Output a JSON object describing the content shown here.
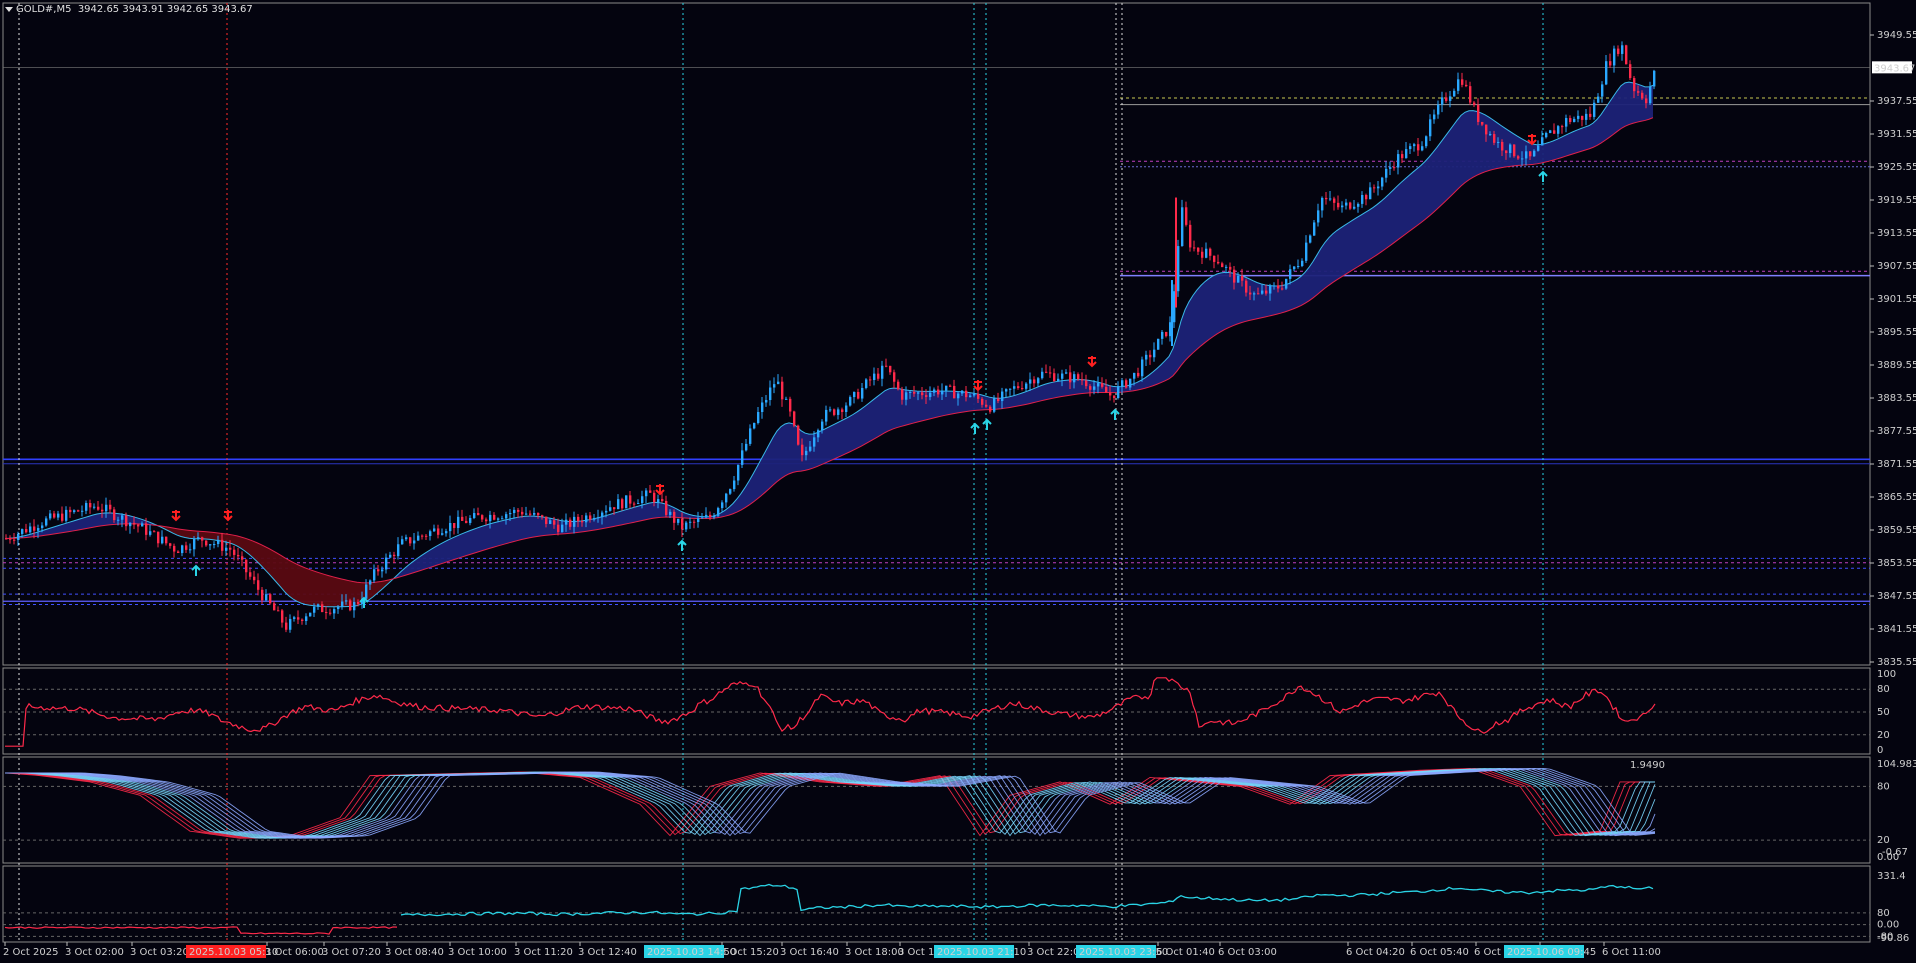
{
  "header": {
    "symbol": "GOLD#,M5",
    "ohlc": "3942.65 3943.91 3942.65 3943.67"
  },
  "price_axis": {
    "labels": [
      "3949.55",
      "3937.55",
      "3931.55",
      "3925.55",
      "3919.55",
      "3913.55",
      "3907.55",
      "3901.55",
      "3895.55",
      "3889.55",
      "3883.55",
      "3877.55",
      "3871.55",
      "3865.55",
      "3859.55",
      "3853.55",
      "3847.55",
      "3841.55",
      "3835.55"
    ],
    "current_price": "3943.67"
  },
  "sub1_axis": {
    "labels": [
      "100",
      "80",
      "50",
      "20",
      "0"
    ]
  },
  "sub2_axis": {
    "labels": [
      "104.9837",
      "80",
      "20",
      "0.00"
    ],
    "value": "1.9490",
    "extra": "-0.67"
  },
  "sub3_axis": {
    "labels": [
      "331.4",
      "80",
      "0.00",
      "-80",
      "-90.86"
    ]
  },
  "time_axis": {
    "labels": [
      "2 Oct 2025",
      "3 Oct 02:00",
      "3 Oct 03:20",
      "3 Oct 06:00",
      "3 Oct 07:20",
      "3 Oct 08:40",
      "3 Oct 10:00",
      "3 Oct 11:20",
      "3 Oct 12:40",
      "3 Oct 15:20",
      "3 Oct 16:40",
      "3 Oct 18:00",
      "3 Oct 19",
      "3 Oct 22:00",
      "6 Oct 01:40",
      "6 Oct 03:00",
      "6 Oct 04:20",
      "6 Oct 05:40",
      "6 Oct 07:00",
      "6 Oct",
      "6 Oct 11:00"
    ],
    "highlights": [
      {
        "text": "2025.10.03 05:10",
        "color": "#ff2020"
      },
      {
        "text": "2025.10.03 14:50",
        "color": "#2ad4e6"
      },
      {
        "text": "2025.10.03 21:10",
        "color": "#2ad4e6"
      },
      {
        "text": "2025.10.03 23:50",
        "color": "#2ad4e6"
      },
      {
        "text": "2025.10.06 09:45",
        "color": "#2ad4e6"
      }
    ]
  },
  "colors": {
    "bg": "#04040f",
    "bull": "#2aa8ff",
    "bear": "#ff2a4a",
    "cloud": "#1c2278",
    "cloud_red": "#5a0a12",
    "grid": "#6b6b6b",
    "cyan": "#2ad4e6",
    "magenta": "#c040c0"
  }
}
